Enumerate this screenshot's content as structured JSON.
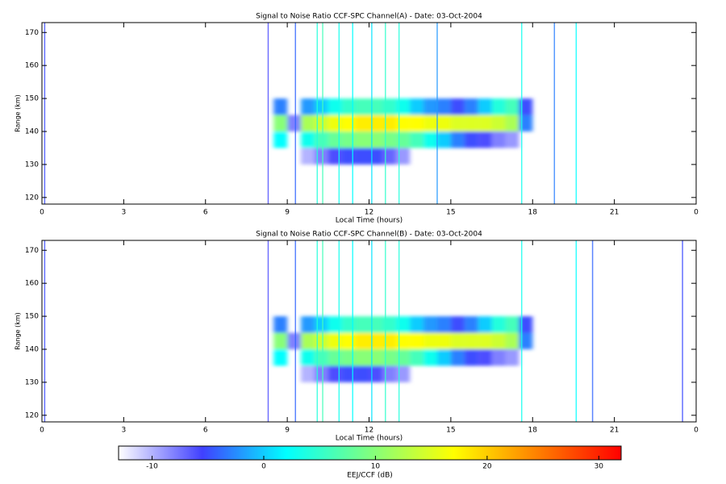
{
  "chart_data": [
    {
      "type": "heatmap",
      "title": "Signal to Noise Ratio CCF-SPC Channel(A) - Date: 03-Oct-2004",
      "xlabel": "Local Time (hours)",
      "ylabel": "Range (km)",
      "x": [
        8.25,
        8.75,
        9.25,
        9.75,
        10.25,
        10.75,
        11.25,
        11.75,
        12.25,
        12.75,
        13.25,
        13.75,
        14.25,
        14.75,
        15.25,
        15.75,
        16.25,
        16.75,
        17.25,
        17.75,
        18.25
      ],
      "y": [
        132.5,
        137.5,
        142.5,
        147.5
      ],
      "z": [
        [
          null,
          null,
          null,
          -10,
          -8,
          -6,
          -5,
          -5,
          -5,
          -7,
          -9,
          null,
          null,
          null,
          null,
          null,
          null,
          null,
          null,
          null,
          null
        ],
        [
          null,
          2,
          null,
          3,
          6,
          8,
          9,
          10,
          10,
          9,
          8,
          6,
          3,
          0,
          -3,
          -5,
          -6,
          -8,
          -9,
          null,
          null
        ],
        [
          null,
          10,
          -8,
          12,
          14,
          16,
          17,
          18,
          18,
          18,
          17,
          17,
          16,
          16,
          15,
          15,
          15,
          14,
          12,
          -3,
          null
        ],
        [
          null,
          -3,
          null,
          -2,
          0,
          3,
          5,
          6,
          6,
          5,
          3,
          0,
          -2,
          -3,
          -5,
          -3,
          0,
          4,
          6,
          -5,
          null
        ]
      ],
      "streaks": {
        "x": [
          0.1,
          8.3,
          9.3,
          10.1,
          10.3,
          10.9,
          11.4,
          12.1,
          12.6,
          13.1,
          14.5,
          17.6,
          18.8,
          19.6
        ],
        "values": [
          -5,
          -6,
          -4,
          4,
          6,
          3,
          2,
          1,
          5,
          4,
          -2,
          3,
          -3,
          2
        ]
      },
      "xlim": [
        0,
        24
      ],
      "ylim": [
        118,
        173
      ],
      "xticks": [
        0,
        3,
        6,
        9,
        12,
        15,
        18,
        21,
        {
          "value": 24,
          "label": "0"
        }
      ],
      "yticks": [
        120,
        130,
        140,
        150,
        160,
        170
      ]
    },
    {
      "type": "heatmap",
      "title": "Signal to Noise Ratio CCF-SPC Channel(B) - Date: 03-Oct-2004",
      "xlabel": "Local Time (hours)",
      "ylabel": "Range (km)",
      "x": [
        8.25,
        8.75,
        9.25,
        9.75,
        10.25,
        10.75,
        11.25,
        11.75,
        12.25,
        12.75,
        13.25,
        13.75,
        14.25,
        14.75,
        15.25,
        15.75,
        16.25,
        16.75,
        17.25,
        17.75,
        18.25
      ],
      "y": [
        132.5,
        137.5,
        142.5,
        147.5
      ],
      "z": [
        [
          null,
          null,
          null,
          -10,
          -8,
          -6,
          -5,
          -5,
          -6,
          -8,
          -9,
          null,
          null,
          null,
          null,
          null,
          null,
          null,
          null,
          null,
          null
        ],
        [
          null,
          2,
          null,
          3,
          6,
          8,
          9,
          10,
          10,
          9,
          8,
          6,
          3,
          0,
          -3,
          -5,
          -6,
          -8,
          -9,
          null,
          null
        ],
        [
          null,
          10,
          -8,
          12,
          14,
          16,
          17,
          18,
          18,
          18,
          17,
          17,
          16,
          16,
          15,
          15,
          15,
          14,
          12,
          -3,
          null
        ],
        [
          null,
          -3,
          null,
          -2,
          0,
          3,
          5,
          6,
          6,
          5,
          3,
          0,
          -2,
          -3,
          -5,
          -3,
          0,
          4,
          6,
          -5,
          null
        ]
      ],
      "streaks": {
        "x": [
          0.1,
          8.3,
          9.3,
          10.1,
          10.3,
          10.9,
          11.4,
          12.1,
          12.6,
          13.1,
          17.6,
          19.6,
          20.2,
          23.5
        ],
        "values": [
          -5,
          -6,
          -4,
          4,
          6,
          3,
          2,
          1,
          5,
          4,
          3,
          2,
          -4,
          -5
        ]
      },
      "xlim": [
        0,
        24
      ],
      "ylim": [
        118,
        173
      ],
      "xticks": [
        0,
        3,
        6,
        9,
        12,
        15,
        18,
        21,
        {
          "value": 24,
          "label": "0"
        }
      ],
      "yticks": [
        120,
        130,
        140,
        150,
        160,
        170
      ]
    }
  ],
  "colorbar": {
    "label": "EEJ/CCF (dB)",
    "clim": [
      -13,
      32
    ],
    "ticks": [
      -10,
      0,
      10,
      20,
      30
    ],
    "colormap": [
      "#ffffff",
      "#4040ff",
      "#00ffff",
      "#80ff80",
      "#ffff00",
      "#ff8000",
      "#ff0000"
    ]
  }
}
